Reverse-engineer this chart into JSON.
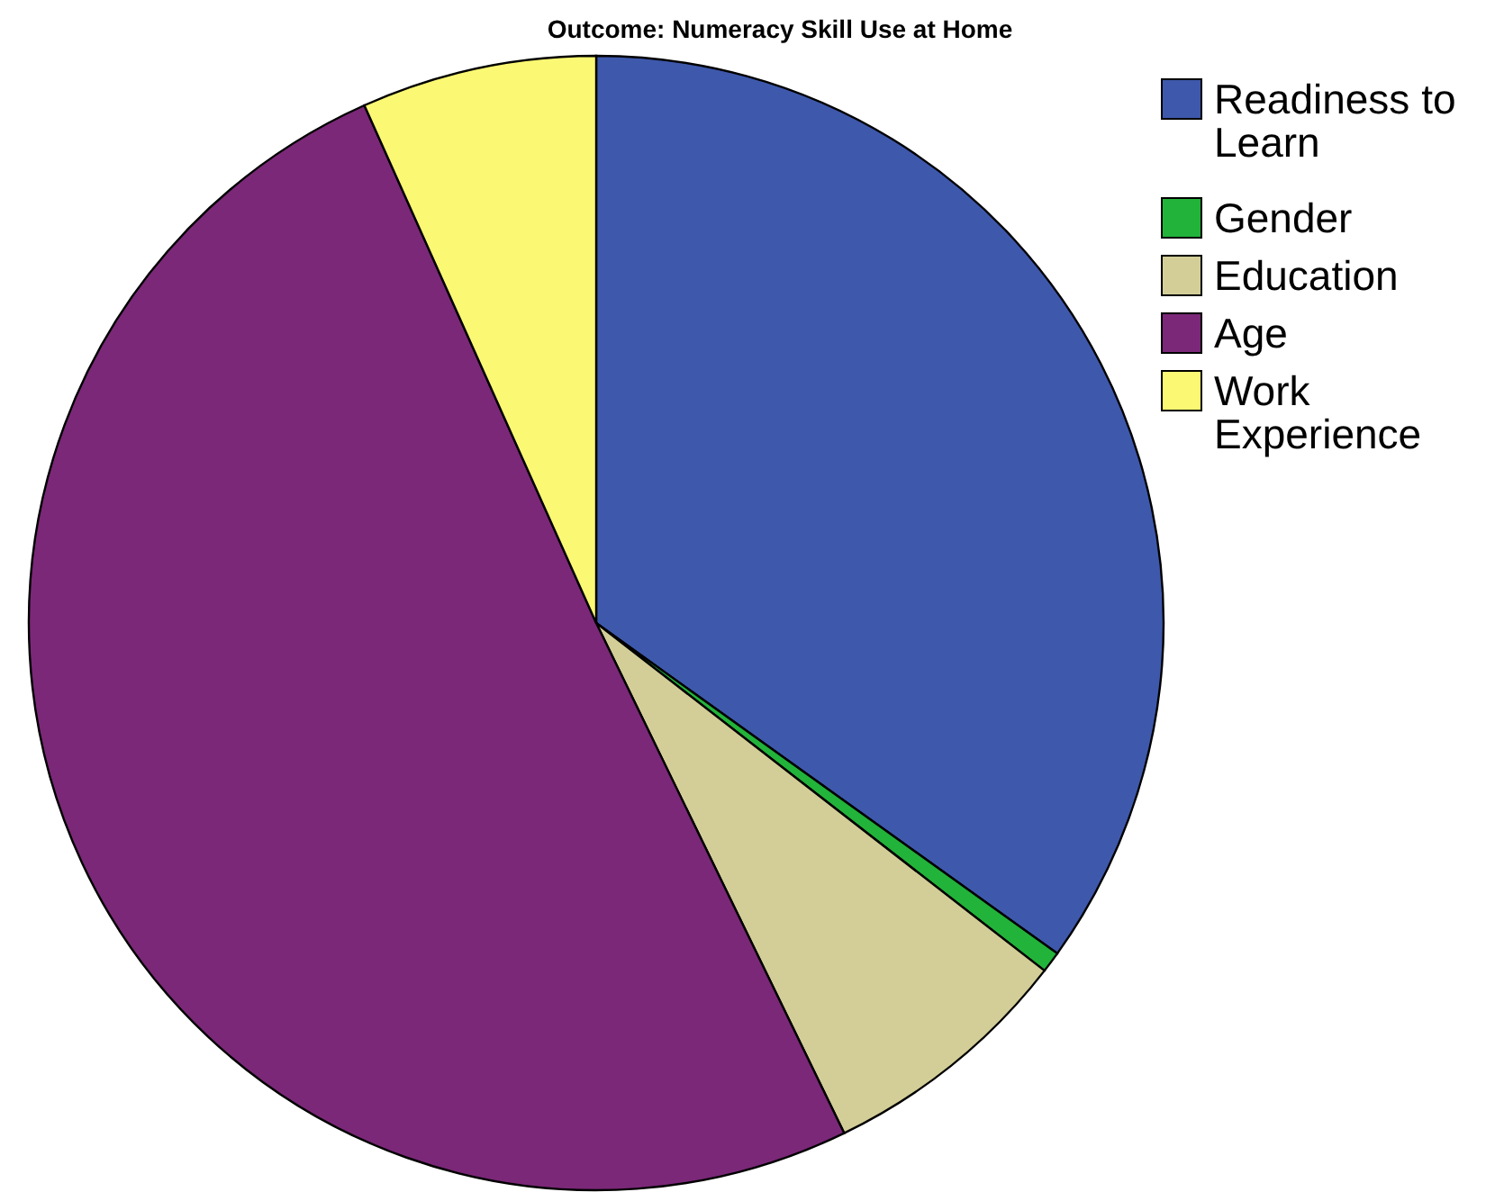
{
  "chart_data": {
    "type": "pie",
    "title": "Outcome: Numeracy Skill Use at Home",
    "categories": [
      "Readiness to Learn",
      "Gender",
      "Education",
      "Age",
      "Work Experience"
    ],
    "values": [
      34.9,
      0.6,
      7.3,
      50.5,
      6.7
    ],
    "colors": [
      "#3e58ac",
      "#22b33a",
      "#d3ce97",
      "#7b2878",
      "#fbf873"
    ],
    "legend": "top right"
  }
}
